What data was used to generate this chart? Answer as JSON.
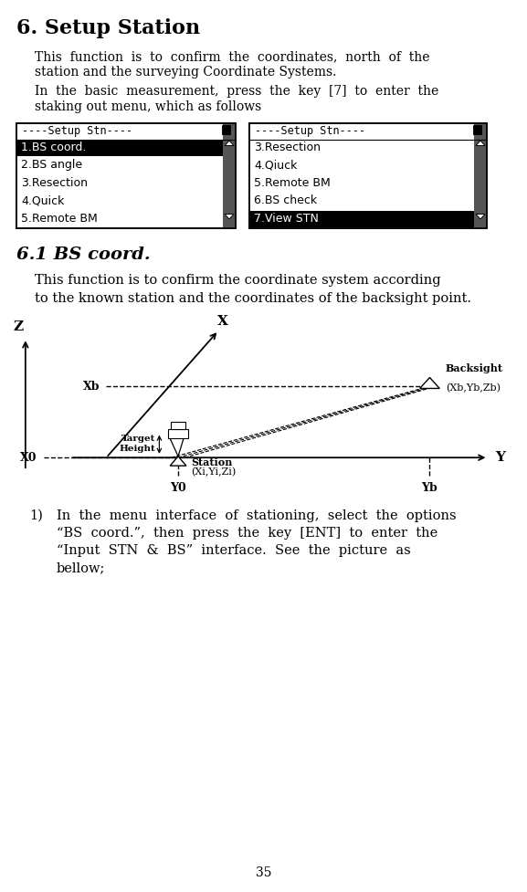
{
  "title": "6. Setup Station",
  "para1_lines": [
    "This  function  is  to  confirm  the  coordinates,  north  of  the",
    "station and the surveying Coordinate Systems."
  ],
  "para2_lines": [
    "In  the  basic  measurement,  press  the  key  [7]  to  enter  the",
    "staking out menu, which as follows"
  ],
  "menu1_title": "----Setup Stn----",
  "menu1_items": [
    "1.BS coord.",
    "2.BS angle",
    "3.Resection",
    "4.Quick",
    "5.Remote BM"
  ],
  "menu1_highlight": 0,
  "menu2_title": "----Setup Stn----",
  "menu2_items": [
    "3.Resection",
    "4.Qiuck",
    "5.Remote BM",
    "6.BS check",
    "7.View STN"
  ],
  "menu2_highlight": 4,
  "section_title": "6.1 BS coord.",
  "sec_para_lines": [
    "This function is to confirm the coordinate system according",
    "to the known station and the coordinates of the backsight point."
  ],
  "list_lines": [
    "In  the  menu  interface  of  stationing,  select  the  options",
    "“BS  coord.”,  then  press  the  key  [ENT]  to  enter  the",
    "“Input  STN  &  BS”  interface.  See  the  picture  as",
    "bellow;"
  ],
  "page_number": "35",
  "bg_color": "#ffffff",
  "text_color": "#000000"
}
